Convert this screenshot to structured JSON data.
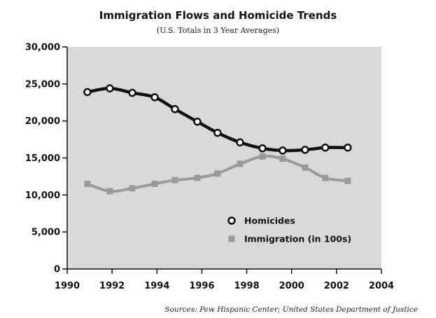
{
  "chart_data": {
    "type": "line",
    "title": "Immigration Flows and Homicide Trends",
    "subtitle": "(U.S. Totals in 3 Year Averages)",
    "source": "Sources: Pew Hispanic Center; United States Department of Justice",
    "xlabel": "",
    "ylabel": "",
    "xlim": [
      1990,
      2004
    ],
    "ylim": [
      0,
      30000
    ],
    "x_ticks": [
      1990,
      1992,
      1994,
      1996,
      1998,
      2000,
      2002,
      2004
    ],
    "y_ticks": [
      0,
      5000,
      10000,
      15000,
      20000,
      25000,
      30000
    ],
    "x_tick_labels": [
      "1990",
      "1992",
      "1994",
      "1996",
      "1998",
      "2000",
      "2002",
      "2004"
    ],
    "y_tick_labels": [
      "0",
      "5,000",
      "10,000",
      "15,000",
      "20,000",
      "25,000",
      "30,000"
    ],
    "grid": false,
    "background": "#d9d9d9",
    "legend_position": "lower-right",
    "series": [
      {
        "name": "Homicides",
        "marker": "circle",
        "color": "#111111",
        "x": [
          1990.9,
          1991.9,
          1992.9,
          1993.9,
          1994.8,
          1995.8,
          1996.7,
          1997.7,
          1998.7,
          1999.6,
          2000.6,
          2001.5,
          2002.5
        ],
        "values": [
          23900,
          24400,
          23800,
          23200,
          21600,
          19900,
          18400,
          17100,
          16300,
          16000,
          16100,
          16400,
          16400
        ]
      },
      {
        "name": "Immigration (in 100s)",
        "marker": "square",
        "color": "#9a9a9a",
        "x": [
          1990.9,
          1991.9,
          1992.9,
          1993.9,
          1994.8,
          1995.8,
          1996.7,
          1997.7,
          1998.7,
          1999.6,
          2000.6,
          2001.5,
          2002.5
        ],
        "values": [
          11500,
          10500,
          10900,
          11500,
          12000,
          12300,
          12900,
          14200,
          15200,
          14900,
          13700,
          12300,
          11900
        ]
      }
    ]
  }
}
